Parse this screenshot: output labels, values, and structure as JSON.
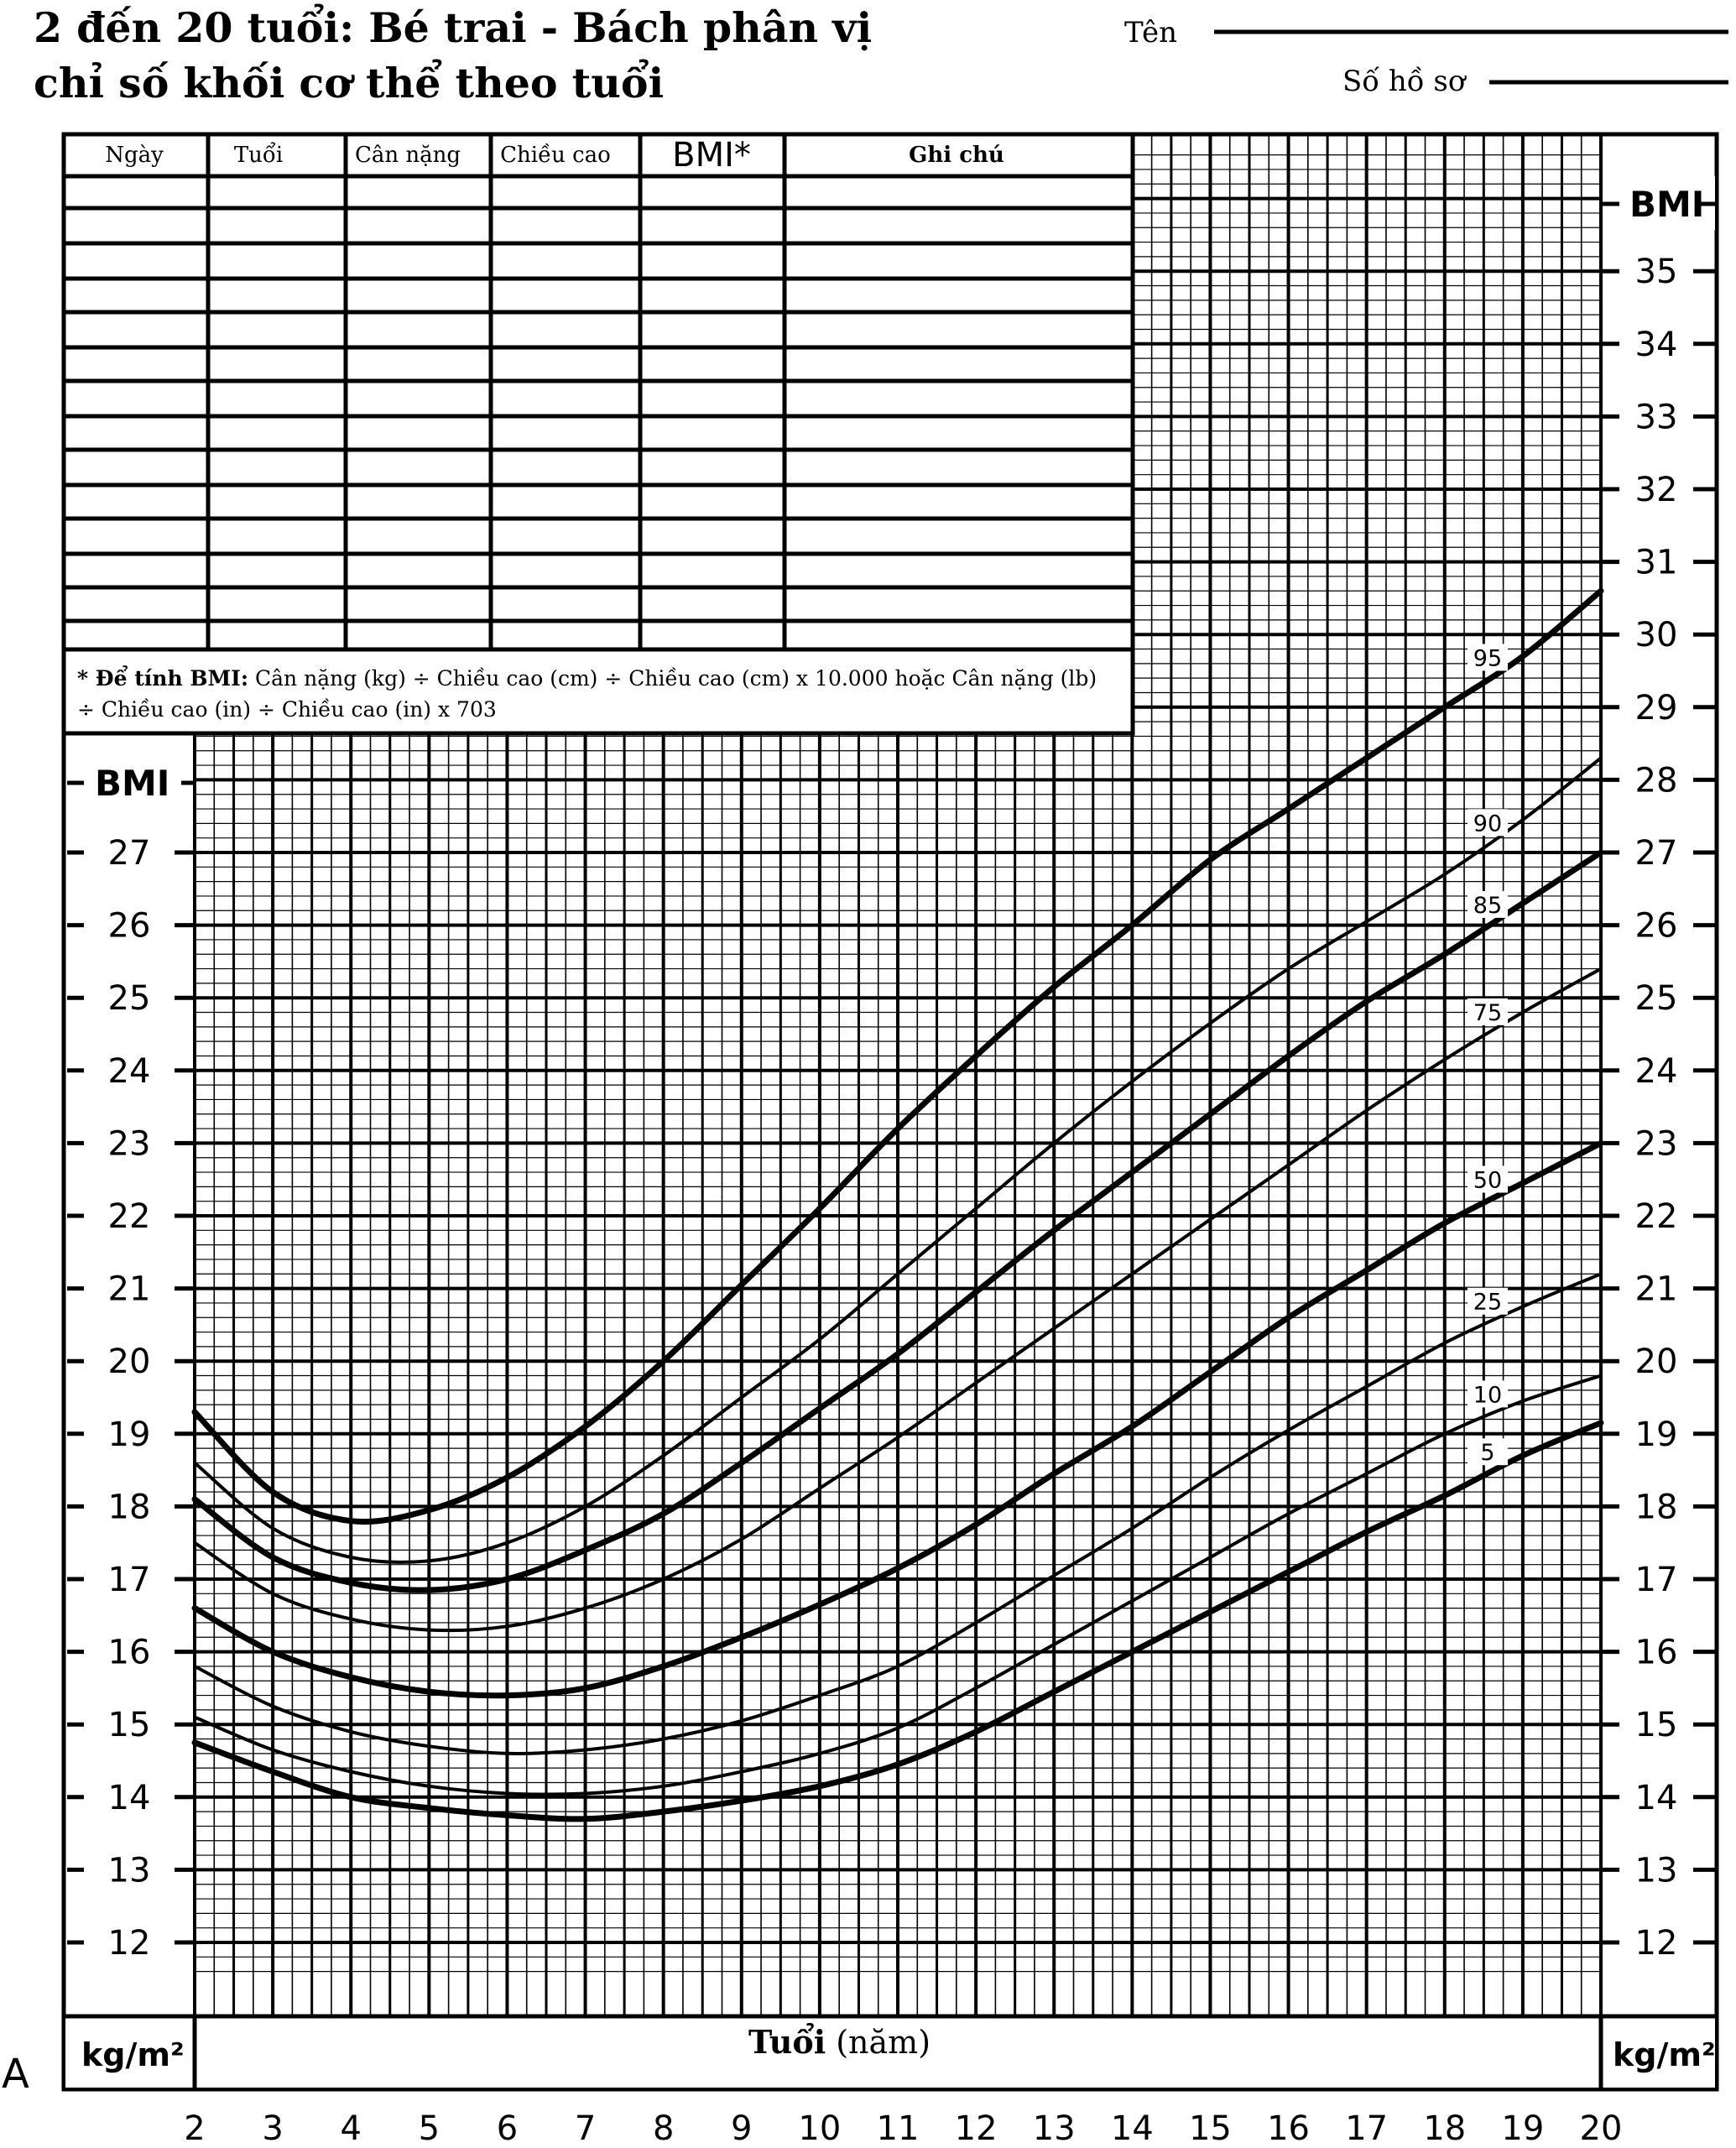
{
  "header": {
    "title_line1": "2 đến 20 tuổi: Bé trai - Bách phân vị",
    "title_line2": "chỉ số khối cơ thể theo tuổi",
    "name_label": "Tên",
    "record_label": "Số hồ sơ"
  },
  "record_table": {
    "columns": [
      "Ngày",
      "Tuổi",
      "Cân nặng",
      "Chiều cao",
      "BMI*",
      "Ghi chú"
    ]
  },
  "formula_note": {
    "bold": "* Để tính BMI:",
    "line1_rest": " Cân nặng (kg) ÷ Chiều cao (cm) ÷ Chiều cao (cm) x 10.000 hoặc Cân nặng (lb)",
    "line2": "÷ Chiều cao (in) ÷ Chiều cao (in) x 703"
  },
  "axis": {
    "left_bmi_label": "BMI",
    "right_bmi_label": "BMI",
    "left_unit": "kg/m²",
    "right_unit": "kg/m²",
    "x_label_bold": "Tuổi",
    "x_label_rest": "(năm)",
    "corner_label": "A"
  },
  "chart_data": {
    "type": "line",
    "xlabel": "Tuổi (năm)",
    "ylabel": "BMI",
    "xlim": [
      2,
      20
    ],
    "x_ticks": [
      2,
      3,
      4,
      5,
      6,
      7,
      8,
      9,
      10,
      11,
      12,
      13,
      14,
      15,
      16,
      17,
      18,
      19,
      20
    ],
    "left_y_ticks": [
      12,
      13,
      14,
      15,
      16,
      17,
      18,
      19,
      20,
      21,
      22,
      23,
      24,
      25,
      26,
      27
    ],
    "right_y_ticks": [
      12,
      13,
      14,
      15,
      16,
      17,
      18,
      19,
      20,
      21,
      22,
      23,
      24,
      25,
      26,
      27,
      28,
      29,
      30,
      31,
      32,
      33,
      34,
      35
    ],
    "grid": true,
    "series": [
      {
        "name": "95",
        "bold": true,
        "x": [
          2,
          3,
          4,
          5,
          6,
          7,
          8,
          9,
          10,
          11,
          12,
          13,
          14,
          15,
          16,
          17,
          18,
          19,
          20
        ],
        "y": [
          19.3,
          18.2,
          17.8,
          17.95,
          18.4,
          19.1,
          20.0,
          21.05,
          22.1,
          23.2,
          24.2,
          25.15,
          26.0,
          26.9,
          27.6,
          28.3,
          29.0,
          29.7,
          30.6
        ]
      },
      {
        "name": "90",
        "bold": false,
        "x": [
          2,
          3,
          4,
          5,
          6,
          7,
          8,
          9,
          10,
          11,
          12,
          13,
          14,
          15,
          16,
          17,
          18,
          19,
          20
        ],
        "y": [
          18.6,
          17.7,
          17.3,
          17.25,
          17.5,
          18.0,
          18.7,
          19.5,
          20.3,
          21.2,
          22.1,
          23.0,
          23.85,
          24.65,
          25.4,
          26.05,
          26.7,
          27.45,
          28.3
        ]
      },
      {
        "name": "85",
        "bold": true,
        "x": [
          2,
          3,
          4,
          5,
          6,
          7,
          8,
          9,
          10,
          11,
          12,
          13,
          14,
          15,
          16,
          17,
          18,
          19,
          20
        ],
        "y": [
          18.1,
          17.3,
          16.95,
          16.85,
          17.0,
          17.4,
          17.9,
          18.6,
          19.35,
          20.1,
          20.95,
          21.8,
          22.6,
          23.4,
          24.2,
          24.95,
          25.6,
          26.3,
          27.0
        ]
      },
      {
        "name": "75",
        "bold": false,
        "x": [
          2,
          3,
          4,
          5,
          6,
          7,
          8,
          9,
          10,
          11,
          12,
          13,
          14,
          15,
          16,
          17,
          18,
          19,
          20
        ],
        "y": [
          17.5,
          16.8,
          16.45,
          16.3,
          16.35,
          16.6,
          17.0,
          17.55,
          18.25,
          18.95,
          19.7,
          20.45,
          21.2,
          21.95,
          22.7,
          23.45,
          24.15,
          24.8,
          25.4
        ]
      },
      {
        "name": "50",
        "bold": true,
        "x": [
          2,
          3,
          4,
          5,
          6,
          7,
          8,
          9,
          10,
          11,
          12,
          13,
          14,
          15,
          16,
          17,
          18,
          19,
          20
        ],
        "y": [
          16.6,
          16.0,
          15.65,
          15.45,
          15.4,
          15.5,
          15.8,
          16.2,
          16.65,
          17.15,
          17.75,
          18.45,
          19.1,
          19.85,
          20.6,
          21.25,
          21.9,
          22.45,
          23.0
        ]
      },
      {
        "name": "25",
        "bold": false,
        "x": [
          2,
          3,
          4,
          5,
          6,
          7,
          8,
          9,
          10,
          11,
          12,
          13,
          14,
          15,
          16,
          17,
          18,
          19,
          20
        ],
        "y": [
          15.8,
          15.25,
          14.9,
          14.7,
          14.6,
          14.65,
          14.8,
          15.05,
          15.4,
          15.8,
          16.4,
          17.05,
          17.7,
          18.4,
          19.05,
          19.65,
          20.25,
          20.75,
          21.2
        ]
      },
      {
        "name": "10",
        "bold": false,
        "x": [
          2,
          3,
          4,
          5,
          6,
          7,
          8,
          9,
          10,
          11,
          12,
          13,
          14,
          15,
          16,
          17,
          18,
          19,
          20
        ],
        "y": [
          15.1,
          14.65,
          14.35,
          14.15,
          14.05,
          14.05,
          14.15,
          14.35,
          14.6,
          14.95,
          15.5,
          16.1,
          16.7,
          17.3,
          17.9,
          18.45,
          19.0,
          19.45,
          19.8
        ]
      },
      {
        "name": "5",
        "bold": true,
        "x": [
          2,
          3,
          4,
          5,
          6,
          7,
          8,
          9,
          10,
          11,
          12,
          13,
          14,
          15,
          16,
          17,
          18,
          19,
          20
        ],
        "y": [
          14.75,
          14.35,
          14.0,
          13.85,
          13.75,
          13.7,
          13.8,
          13.95,
          14.15,
          14.45,
          14.9,
          15.45,
          16.0,
          16.55,
          17.1,
          17.65,
          18.15,
          18.7,
          19.15
        ]
      }
    ]
  }
}
